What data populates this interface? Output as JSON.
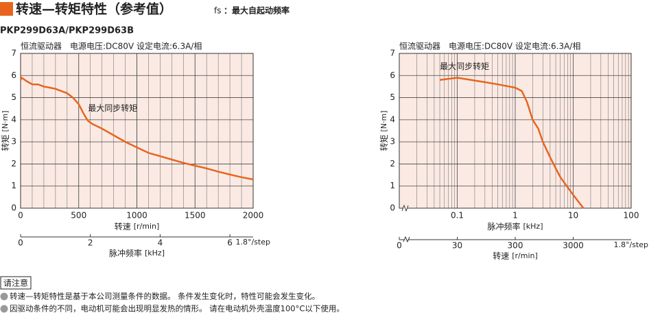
{
  "header": {
    "title": "转速—转矩特性（参考值）",
    "note_symbol": "fs",
    "note": "：最大自起动频率",
    "model": "PKP299D63A/PKP299D63B"
  },
  "chart_data": [
    {
      "type": "line",
      "condition": "恒流驱动器　电源电压:DC80V 设定电流:6.3A/相",
      "annotation": "最大同步转矩",
      "xlabel": "转速",
      "xunit": "[r/min]",
      "ylabel": "转矩",
      "yunit": "[N·m]",
      "x": [
        0,
        10,
        50,
        100,
        150,
        200,
        250,
        300,
        350,
        400,
        450,
        500,
        550,
        580,
        620,
        700,
        800,
        900,
        1000,
        1100,
        1200,
        1300,
        1400,
        1500,
        1600,
        1700,
        1800,
        1900,
        2000
      ],
      "values": [
        5.8,
        5.9,
        5.75,
        5.6,
        5.6,
        5.5,
        5.45,
        5.4,
        5.3,
        5.2,
        5.0,
        4.7,
        4.2,
        3.95,
        3.8,
        3.6,
        3.3,
        3.0,
        2.75,
        2.5,
        2.35,
        2.2,
        2.05,
        1.92,
        1.8,
        1.65,
        1.52,
        1.4,
        1.3
      ],
      "color": "#e8641e",
      "background": "#fbeae3",
      "grid": true,
      "xlim": [
        0,
        2000
      ],
      "xticks": [
        0,
        500,
        1000,
        1500,
        2000
      ],
      "x_minor_step": 100,
      "ylim": [
        0,
        7
      ],
      "yticks": [
        0,
        1,
        2,
        3,
        4,
        5,
        6,
        7
      ],
      "x2label": "脉冲频率",
      "x2unit": "[kHz]",
      "x2lim": [
        0,
        6.667
      ],
      "x2ticks": [
        0,
        2,
        4,
        6
      ],
      "x2note": "1.8°/step"
    },
    {
      "type": "line",
      "condition": "恒流驱动器　电源电压:DC80V 设定电流:6.3A/相",
      "annotation": "最大同步转矩",
      "xlabel": "脉冲频率",
      "xunit": "[kHz]",
      "ylabel": "转矩",
      "yunit": "[N·m]",
      "xscale": "log",
      "x": [
        0.05,
        0.1,
        0.3,
        0.5,
        1,
        1.3,
        1.6,
        2,
        2.5,
        3,
        4,
        5,
        6,
        8,
        10,
        15
      ],
      "values": [
        5.8,
        5.9,
        5.7,
        5.6,
        5.45,
        5.3,
        4.8,
        4.0,
        3.6,
        3.0,
        2.3,
        1.8,
        1.4,
        0.95,
        0.6,
        0.0
      ],
      "color": "#e8641e",
      "background": "#fbeae3",
      "grid": true,
      "xlim": [
        0.01,
        100
      ],
      "xticks": [
        0.1,
        1,
        10,
        100
      ],
      "ylim": [
        0,
        7
      ],
      "yticks": [
        0,
        1,
        2,
        3,
        4,
        5,
        6,
        7
      ],
      "x2label": "转速",
      "x2unit": "[r/min]",
      "x2scale": "log",
      "x2lim": [
        3,
        30000
      ],
      "x2ticks": [
        30,
        300,
        3000
      ],
      "x2_origin_label": "0",
      "x2note": "1.8°/step"
    }
  ],
  "notes": {
    "heading": "请注意",
    "items": [
      "转速—转矩特性是基于本公司测量条件的数据。 条件发生变化时，特性可能会发生变化。",
      "因驱动条件的不同，电动机可能会出现明显发热的情形。 请在电动机外壳温度100°C以下使用。"
    ]
  }
}
